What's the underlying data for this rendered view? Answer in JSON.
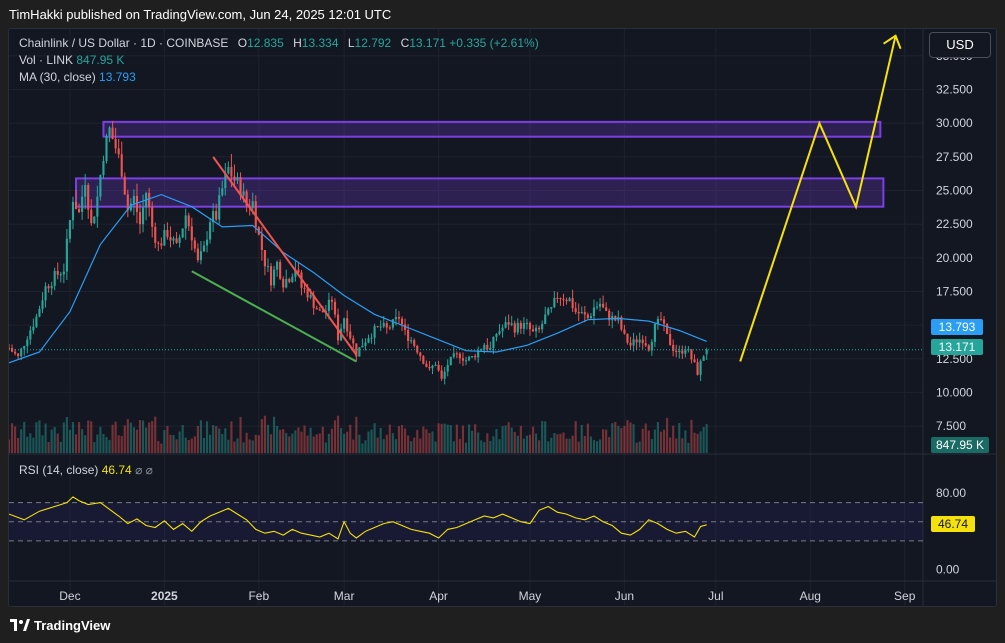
{
  "header": {
    "publish_text": "TimHakki published on TradingView.com, Jun 24, 2025 12:01 UTC"
  },
  "legend": {
    "symbol": "Chainlink / US Dollar · 1D · COINBASE",
    "o_label": "O",
    "o_value": "12.835",
    "h_label": "H",
    "h_value": "13.334",
    "l_label": "L",
    "l_value": "12.792",
    "c_label": "C",
    "c_value": "13.171",
    "change": "+0.335 (+2.61%)",
    "vol_label": "Vol · LINK",
    "vol_value": "847.95 K",
    "ma_label": "MA (30, close)",
    "ma_value": "13.793",
    "rsi_label": "RSI (14, close)",
    "rsi_value": "46.74",
    "rsi_icons": "⌀ ⌀"
  },
  "currency_button": "USD",
  "price_tags": {
    "ma": "13.793",
    "close": "13.171",
    "volume": "847.95 K",
    "rsi": "46.74"
  },
  "colors": {
    "up": "#26a69a",
    "down": "#ef5350",
    "ma": "#2a9df4",
    "rsi": "#f5e10b",
    "zone": "#7b3fe4",
    "projection": "#f5e10b",
    "resistance": "#ef5350",
    "support": "#4caf50"
  },
  "footer": {
    "brand": "TradingView"
  },
  "chart_data": {
    "type": "candlestick",
    "title": "Chainlink / US Dollar · 1D · COINBASE",
    "y_ticks": [
      "35.000",
      "32.500",
      "30.000",
      "27.500",
      "25.000",
      "22.500",
      "20.000",
      "17.500",
      "15.000",
      "12.500",
      "10.000",
      "7.500"
    ],
    "y_tick_values": [
      35,
      32.5,
      30,
      27.5,
      25,
      22.5,
      20,
      17.5,
      15,
      12.5,
      10,
      7.5
    ],
    "ylim": [
      5.5,
      37
    ],
    "x_ticks": [
      "Dec",
      "2025",
      "Feb",
      "Mar",
      "Apr",
      "May",
      "Jun",
      "Jul",
      "Aug",
      "Sep"
    ],
    "x_tick_days": [
      0,
      31,
      62,
      90,
      121,
      151,
      182,
      212,
      243,
      274
    ],
    "xlim_days": [
      -20,
      280
    ],
    "close_path": [
      [
        -20,
        13.3
      ],
      [
        -17,
        12.6
      ],
      [
        -14,
        14.2
      ],
      [
        -11,
        15.6
      ],
      [
        -8,
        17.8
      ],
      [
        -5,
        18.6
      ],
      [
        -2,
        19.2
      ],
      [
        1,
        24.5
      ],
      [
        3,
        23.3
      ],
      [
        5,
        25.9
      ],
      [
        7,
        22.4
      ],
      [
        9,
        24.5
      ],
      [
        11,
        27.8
      ],
      [
        13,
        29.5
      ],
      [
        15,
        28.2
      ],
      [
        17,
        26.6
      ],
      [
        19,
        23.6
      ],
      [
        21,
        24.4
      ],
      [
        23,
        22.5
      ],
      [
        25,
        24.9
      ],
      [
        27,
        22.3
      ],
      [
        29,
        20.9
      ],
      [
        32,
        21.9
      ],
      [
        35,
        20.7
      ],
      [
        38,
        23.2
      ],
      [
        40,
        21.7
      ],
      [
        42,
        19.6
      ],
      [
        44,
        20.6
      ],
      [
        46,
        22.9
      ],
      [
        48,
        23.1
      ],
      [
        50,
        25.1
      ],
      [
        52,
        26.6
      ],
      [
        54,
        25.8
      ],
      [
        56,
        25.2
      ],
      [
        58,
        23.9
      ],
      [
        60,
        24.1
      ],
      [
        62,
        21.6
      ],
      [
        64,
        19.7
      ],
      [
        66,
        18.4
      ],
      [
        68,
        19.6
      ],
      [
        70,
        18.2
      ],
      [
        72,
        18.6
      ],
      [
        74,
        19.3
      ],
      [
        76,
        17.8
      ],
      [
        78,
        17.4
      ],
      [
        80,
        16.6
      ],
      [
        82,
        15.9
      ],
      [
        84,
        16.1
      ],
      [
        86,
        16.9
      ],
      [
        88,
        14.1
      ],
      [
        90,
        15.6
      ],
      [
        92,
        14.2
      ],
      [
        94,
        12.9
      ],
      [
        96,
        13.6
      ],
      [
        98,
        14.2
      ],
      [
        100,
        14.6
      ],
      [
        102,
        14.9
      ],
      [
        104,
        14.7
      ],
      [
        106,
        15.1
      ],
      [
        108,
        15.6
      ],
      [
        110,
        14.4
      ],
      [
        112,
        13.9
      ],
      [
        114,
        13.2
      ],
      [
        116,
        12.4
      ],
      [
        118,
        11.6
      ],
      [
        120,
        12.2
      ],
      [
        122,
        10.9
      ],
      [
        124,
        12.1
      ],
      [
        126,
        12.6
      ],
      [
        128,
        12.8
      ],
      [
        130,
        12.4
      ],
      [
        132,
        12.6
      ],
      [
        134,
        13.1
      ],
      [
        136,
        13.6
      ],
      [
        138,
        13.2
      ],
      [
        140,
        14.4
      ],
      [
        142,
        14.8
      ],
      [
        144,
        15.2
      ],
      [
        146,
        14.8
      ],
      [
        148,
        15.0
      ],
      [
        150,
        14.9
      ],
      [
        152,
        14.4
      ],
      [
        154,
        14.6
      ],
      [
        156,
        15.6
      ],
      [
        158,
        16.1
      ],
      [
        160,
        17.2
      ],
      [
        162,
        17.1
      ],
      [
        164,
        16.9
      ],
      [
        166,
        16.0
      ],
      [
        168,
        15.8
      ],
      [
        170,
        15.5
      ],
      [
        172,
        16.3
      ],
      [
        174,
        16.6
      ],
      [
        176,
        15.8
      ],
      [
        178,
        15.5
      ],
      [
        180,
        15.3
      ],
      [
        182,
        14.1
      ],
      [
        184,
        13.5
      ],
      [
        186,
        13.9
      ],
      [
        188,
        14.0
      ],
      [
        190,
        13.4
      ],
      [
        192,
        14.8
      ],
      [
        194,
        15.4
      ],
      [
        196,
        14.1
      ],
      [
        198,
        13.3
      ],
      [
        200,
        12.9
      ],
      [
        202,
        13.4
      ],
      [
        204,
        12.5
      ],
      [
        206,
        11.5
      ],
      [
        208,
        12.8
      ],
      [
        209,
        13.171
      ]
    ],
    "ma_path": [
      [
        -20,
        12.2
      ],
      [
        -10,
        13.0
      ],
      [
        0,
        16.0
      ],
      [
        10,
        21.0
      ],
      [
        20,
        23.9
      ],
      [
        30,
        24.7
      ],
      [
        40,
        23.8
      ],
      [
        50,
        22.3
      ],
      [
        60,
        22.4
      ],
      [
        70,
        20.4
      ],
      [
        80,
        18.9
      ],
      [
        90,
        17.2
      ],
      [
        100,
        15.8
      ],
      [
        110,
        14.9
      ],
      [
        120,
        14.0
      ],
      [
        130,
        13.1
      ],
      [
        140,
        13.0
      ],
      [
        150,
        13.5
      ],
      [
        160,
        14.4
      ],
      [
        170,
        15.4
      ],
      [
        180,
        15.5
      ],
      [
        190,
        15.3
      ],
      [
        200,
        14.6
      ],
      [
        209,
        13.793
      ]
    ],
    "ma_name": "MA (30, close)",
    "last_close": 13.171,
    "last_ma": 13.793,
    "volume_last": 847.95,
    "zones": [
      {
        "day_start": 11,
        "day_end": 266,
        "low": 29.0,
        "high": 30.1
      },
      {
        "day_start": 2,
        "day_end": 267,
        "low": 23.8,
        "high": 25.9
      }
    ],
    "trendlines": [
      {
        "kind": "resistance",
        "from": [
          47,
          27.5
        ],
        "to": [
          94,
          12.8
        ]
      },
      {
        "kind": "support",
        "from": [
          40,
          19.0
        ],
        "to": [
          94,
          12.3
        ]
      }
    ],
    "projection_path": [
      [
        220,
        12.3
      ],
      [
        246,
        30.0
      ],
      [
        258,
        23.8
      ],
      [
        271,
        36.5
      ]
    ],
    "rsi": {
      "name": "RSI (14, close)",
      "last": 46.74,
      "y_ticks": [
        "80.00",
        "0.00"
      ],
      "y_tick_values": [
        80,
        0
      ],
      "bands": [
        70,
        50,
        30
      ],
      "ylim": [
        -10,
        100
      ],
      "path": [
        [
          -20,
          58
        ],
        [
          -15,
          52
        ],
        [
          -10,
          61
        ],
        [
          -5,
          66
        ],
        [
          -1,
          70
        ],
        [
          1,
          76
        ],
        [
          3,
          72
        ],
        [
          6,
          68
        ],
        [
          10,
          70
        ],
        [
          13,
          63
        ],
        [
          16,
          56
        ],
        [
          19,
          48
        ],
        [
          22,
          53
        ],
        [
          25,
          46
        ],
        [
          28,
          44
        ],
        [
          31,
          51
        ],
        [
          34,
          42
        ],
        [
          37,
          48
        ],
        [
          40,
          40
        ],
        [
          43,
          50
        ],
        [
          46,
          56
        ],
        [
          49,
          60
        ],
        [
          52,
          64
        ],
        [
          55,
          58
        ],
        [
          58,
          52
        ],
        [
          61,
          42
        ],
        [
          64,
          38
        ],
        [
          67,
          40
        ],
        [
          70,
          36
        ],
        [
          73,
          42
        ],
        [
          76,
          38
        ],
        [
          79,
          36
        ],
        [
          82,
          34
        ],
        [
          85,
          38
        ],
        [
          88,
          32
        ],
        [
          90,
          50
        ],
        [
          92,
          38
        ],
        [
          94,
          33
        ],
        [
          97,
          40
        ],
        [
          100,
          44
        ],
        [
          103,
          48
        ],
        [
          106,
          50
        ],
        [
          109,
          46
        ],
        [
          112,
          42
        ],
        [
          115,
          40
        ],
        [
          118,
          38
        ],
        [
          121,
          33
        ],
        [
          124,
          42
        ],
        [
          127,
          44
        ],
        [
          130,
          48
        ],
        [
          133,
          52
        ],
        [
          136,
          56
        ],
        [
          139,
          54
        ],
        [
          142,
          58
        ],
        [
          145,
          54
        ],
        [
          148,
          50
        ],
        [
          151,
          48
        ],
        [
          154,
          62
        ],
        [
          157,
          66
        ],
        [
          160,
          60
        ],
        [
          163,
          58
        ],
        [
          166,
          54
        ],
        [
          169,
          52
        ],
        [
          172,
          56
        ],
        [
          175,
          50
        ],
        [
          178,
          46
        ],
        [
          181,
          38
        ],
        [
          184,
          36
        ],
        [
          187,
          42
        ],
        [
          190,
          52
        ],
        [
          193,
          48
        ],
        [
          196,
          42
        ],
        [
          199,
          38
        ],
        [
          202,
          40
        ],
        [
          205,
          34
        ],
        [
          207,
          45
        ],
        [
          209,
          46.74
        ]
      ]
    }
  }
}
